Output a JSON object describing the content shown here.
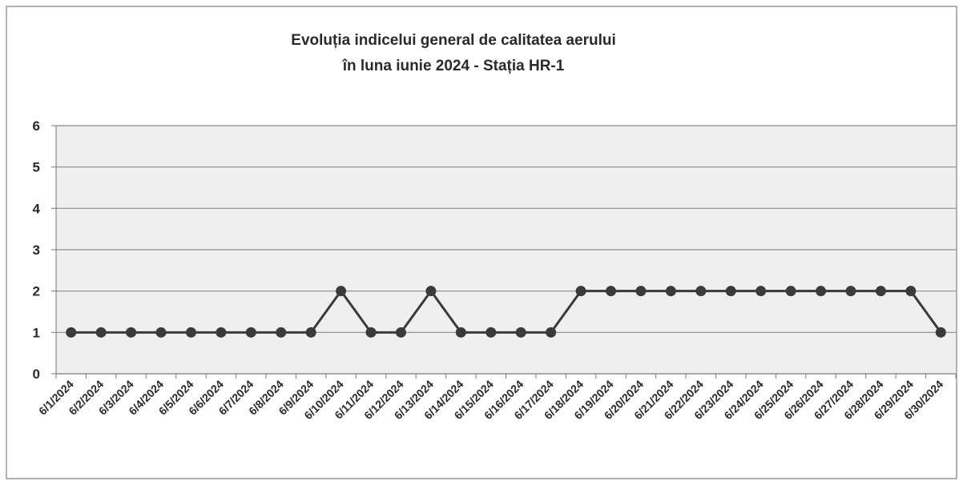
{
  "chart_data": {
    "type": "line",
    "title_lines": [
      "Evoluția indicelui general de calitatea aerului",
      "în luna iunie 2024 - Stația HR-1"
    ],
    "categories": [
      "6/1/2024",
      "6/2/2024",
      "6/3/2024",
      "6/4/2024",
      "6/5/2024",
      "6/6/2024",
      "6/7/2024",
      "6/8/2024",
      "6/9/2024",
      "6/10/2024",
      "6/11/2024",
      "6/12/2024",
      "6/13/2024",
      "6/14/2024",
      "6/15/2024",
      "6/16/2024",
      "6/17/2024",
      "6/18/2024",
      "6/19/2024",
      "6/20/2024",
      "6/21/2024",
      "6/22/2024",
      "6/23/2024",
      "6/24/2024",
      "6/25/2024",
      "6/26/2024",
      "6/27/2024",
      "6/28/2024",
      "6/29/2024",
      "6/30/2024"
    ],
    "values": [
      1,
      1,
      1,
      1,
      1,
      1,
      1,
      1,
      1,
      2,
      1,
      1,
      2,
      1,
      1,
      1,
      1,
      2,
      2,
      2,
      2,
      2,
      2,
      2,
      2,
      2,
      2,
      2,
      2,
      1
    ],
    "color": "#3a3a3a",
    "ylim": [
      0,
      6
    ],
    "yticks": [
      0,
      1,
      2,
      3,
      4,
      5,
      6
    ],
    "grid": true
  }
}
